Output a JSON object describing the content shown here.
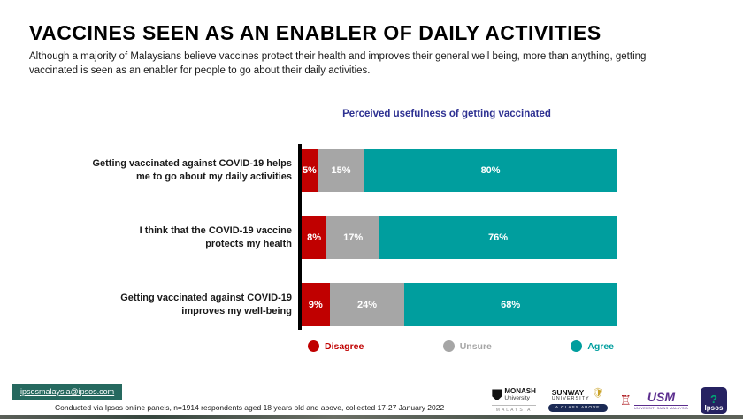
{
  "header": {
    "title": "VACCINES SEEN AS AN ENABLER OF DAILY ACTIVITIES",
    "subtitle": "Although a majority of Malaysians believe vaccines protect their health and improves their general well being, more than anything, getting vaccinated is seen as an enabler for people to go about their daily activities."
  },
  "chart_data": {
    "type": "bar",
    "orientation": "horizontal-stacked",
    "title": "Perceived usefulness of getting vaccinated",
    "categories": [
      "Getting vaccinated against COVID-19 helps\nme to go about my daily activities",
      "I think that the COVID-19 vaccine\nprotects my health",
      "Getting vaccinated against COVID-19\nimproves my well-being"
    ],
    "series": [
      {
        "name": "Disagree",
        "color": "#c00000",
        "values": [
          5,
          8,
          9
        ]
      },
      {
        "name": "Unsure",
        "color": "#a6a6a6",
        "values": [
          15,
          17,
          24
        ]
      },
      {
        "name": "Agree",
        "color": "#009e9e",
        "values": [
          80,
          76,
          68
        ]
      }
    ],
    "value_suffix": "%",
    "xlim": [
      0,
      100
    ],
    "grid": false,
    "legend_position": "bottom"
  },
  "footer": {
    "email": "ipsosmalaysia@ipsos.com",
    "note": "Conducted via Ipsos online panels, n=1914 respondents aged 18 years old and above, collected 17-27 January 2022"
  },
  "logos": {
    "monash": {
      "name": "MONASH",
      "sub": "University",
      "country": "MALAYSIA"
    },
    "sunway": {
      "name": "SUNWAY",
      "sub": "UNIVERSITY",
      "banner": "A CLASS ABOVE",
      "crest_icon": "crest-icon"
    },
    "usm": {
      "acronym": "USM",
      "caption": "UNIVERSITI SAINS MALAYSIA",
      "crest_icon": "crest-icon"
    },
    "ipsos": {
      "word": "Ipsos",
      "mark": "?"
    }
  },
  "colors": {
    "disagree": "#c00000",
    "unsure": "#a6a6a6",
    "agree": "#009e9e",
    "chart_title": "#2e3192",
    "email_bg": "#26695f"
  }
}
